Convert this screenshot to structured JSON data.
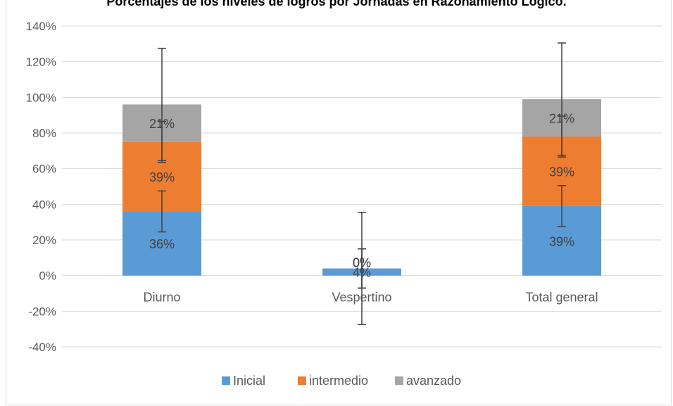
{
  "chart_data": {
    "type": "bar",
    "stacked": true,
    "title": "Porcentajes de los niveles de logros por Jornadas en Razonamiento Lógico.",
    "categories": [
      "Diurno",
      "Vespertino",
      "Total general"
    ],
    "series": [
      {
        "name": "Inicial",
        "color": "#5b9bd5",
        "values": [
          0.36,
          0.04,
          0.39
        ],
        "labels": [
          "36%",
          "4%",
          "39%"
        ],
        "error": [
          0.115,
          0.11,
          0.115
        ]
      },
      {
        "name": "intermedio",
        "color": "#ed7d31",
        "values": [
          0.39,
          0.0,
          0.39
        ],
        "labels": [
          "39%",
          "0%",
          "39%"
        ],
        "error": [
          0.115,
          0.11,
          0.115
        ]
      },
      {
        "name": "avanzado",
        "color": "#a5a5a5",
        "values": [
          0.21,
          0.0,
          0.21
        ],
        "labels": [
          "21%",
          "0%",
          "21%"
        ],
        "error": [
          0.315,
          0.315,
          0.315
        ]
      }
    ],
    "ylim": [
      -0.4,
      1.4
    ],
    "yticks": [
      -0.4,
      -0.2,
      0,
      0.2,
      0.4,
      0.6,
      0.8,
      1.0,
      1.2,
      1.4
    ],
    "ytick_labels": [
      "-40%",
      "-20%",
      "0%",
      "20%",
      "40%",
      "60%",
      "80%",
      "100%",
      "120%",
      "140%"
    ],
    "grid": true,
    "legend_position": "bottom"
  }
}
